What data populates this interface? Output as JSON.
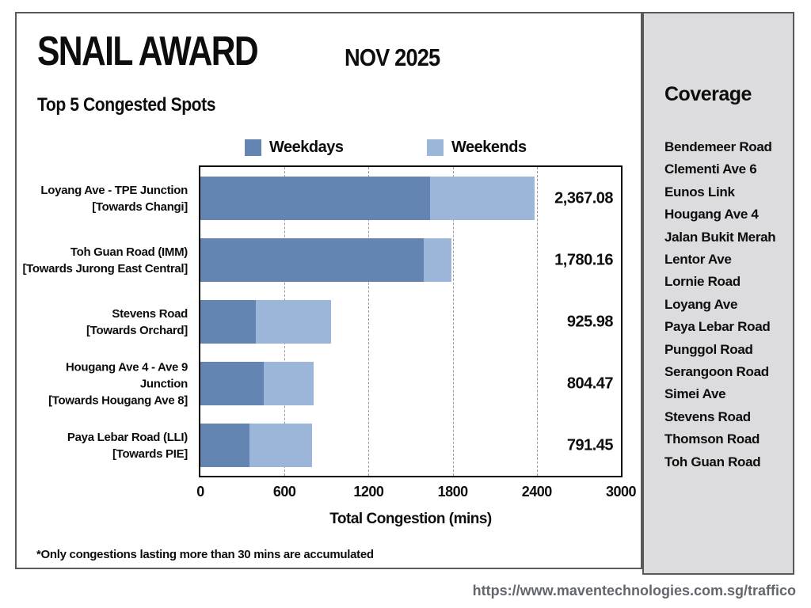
{
  "header": {
    "title": "SNAIL AWARD",
    "period": "NOV 2025",
    "subtitle": "Top 5 Congested Spots"
  },
  "chart_data": {
    "type": "bar",
    "orientation": "horizontal",
    "stacked": true,
    "title": "Top 5 Congested Spots",
    "xlabel": "Total Congestion (mins)",
    "xlim": [
      0,
      3000
    ],
    "x_ticks": [
      0,
      600,
      1200,
      1800,
      2400,
      3000
    ],
    "grid": "vertical-dashed",
    "legend": [
      "Weekdays",
      "Weekends"
    ],
    "legend_position": "top",
    "colors": {
      "weekdays": "#6484b2",
      "weekends": "#9bb6d8"
    },
    "rows": [
      {
        "label_line1": "Loyang Ave - TPE Junction",
        "label_line2": "[Towards Changi]",
        "weekdays": 1625,
        "weekends": 742.08,
        "total": 2367.08,
        "total_label": "2,367.08"
      },
      {
        "label_line1": "Toh Guan Road (IMM)",
        "label_line2": "[Towards Jurong East Central]",
        "weekdays": 1579,
        "weekends": 201.16,
        "total": 1780.16,
        "total_label": "1,780.16"
      },
      {
        "label_line1": "Stevens Road",
        "label_line2": "[Towards Orchard]",
        "weekdays": 395,
        "weekends": 530.98,
        "total": 925.98,
        "total_label": "925.98"
      },
      {
        "label_line1": "Hougang Ave 4 - Ave 9 Junction",
        "label_line2": "[Towards Hougang Ave 8]",
        "weekdays": 450,
        "weekends": 354.47,
        "total": 804.47,
        "total_label": "804.47"
      },
      {
        "label_line1": "Paya Lebar Road (LLI)",
        "label_line2": "[Towards PIE]",
        "weekdays": 350,
        "weekends": 441.45,
        "total": 791.45,
        "total_label": "791.45"
      }
    ]
  },
  "sidebar": {
    "title": "Coverage",
    "items": [
      "Bendemeer Road",
      "Clementi Ave 6",
      "Eunos Link",
      "Hougang Ave 4",
      "Jalan Bukit Merah",
      "Lentor Ave",
      "Lornie Road",
      "Loyang Ave",
      "Paya Lebar Road",
      "Punggol Road",
      "Serangoon Road",
      "Simei Ave",
      "Stevens Road",
      "Thomson Road",
      "Toh Guan Road"
    ]
  },
  "footnote": "*Only congestions lasting more than 30 mins are accumulated",
  "footer_url": "https://www.maventechnologies.com.sg/traffico"
}
